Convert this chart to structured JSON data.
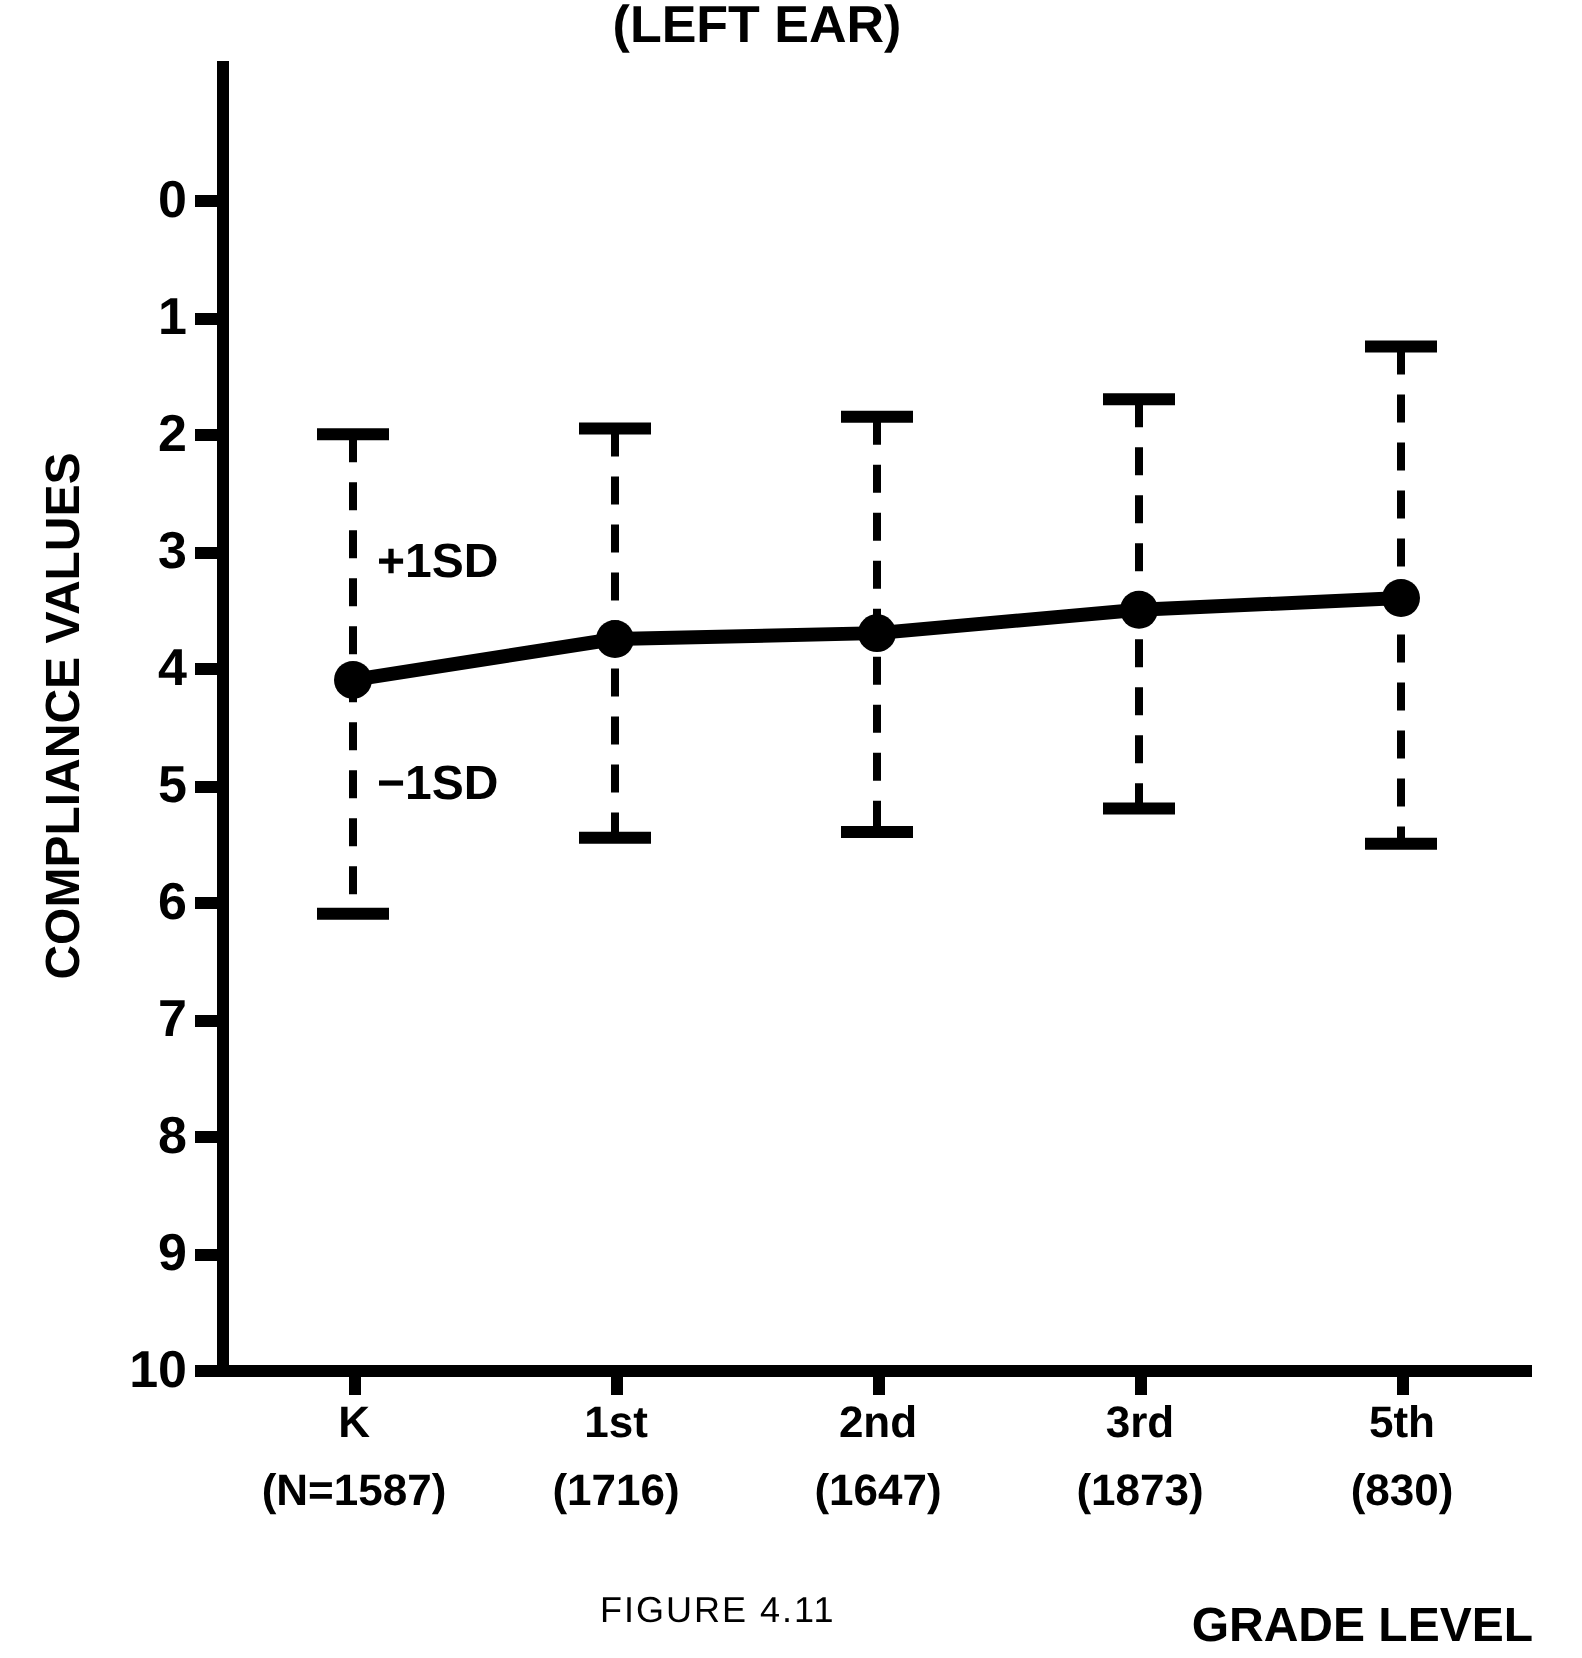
{
  "chart_data": {
    "type": "line",
    "title": "(LEFT EAR)",
    "xlabel": "GRADE LEVEL",
    "ylabel": "COMPLIANCE VALUES",
    "categories": [
      "K (N=1587)",
      "1st (1716)",
      "2nd (1647)",
      "3rd (1873)",
      "5th (830)"
    ],
    "series": [
      {
        "color": "#000000",
        "values": [
          4.1,
          3.75,
          3.7,
          3.5,
          3.4
        ],
        "errors": [
          [
            2.0,
            6.1
          ],
          [
            1.95,
            5.45
          ],
          [
            1.85,
            5.4
          ],
          [
            1.7,
            5.2
          ],
          [
            1.25,
            5.5
          ]
        ]
      }
    ],
    "ylim": [
      10,
      -1.2
    ],
    "yticks": [
      0,
      1,
      2,
      3,
      4,
      5,
      6,
      7,
      8,
      9,
      10
    ],
    "marker": "circle",
    "line_style": "solid",
    "grid": false,
    "annotations": [
      {
        "text": "+1SD",
        "x": "K (N=1587)",
        "y": 3.1
      },
      {
        "text": "−1SD",
        "x": "K (N=1587)",
        "y": 5.0
      },
      "FIGURE 4.11"
    ]
  }
}
